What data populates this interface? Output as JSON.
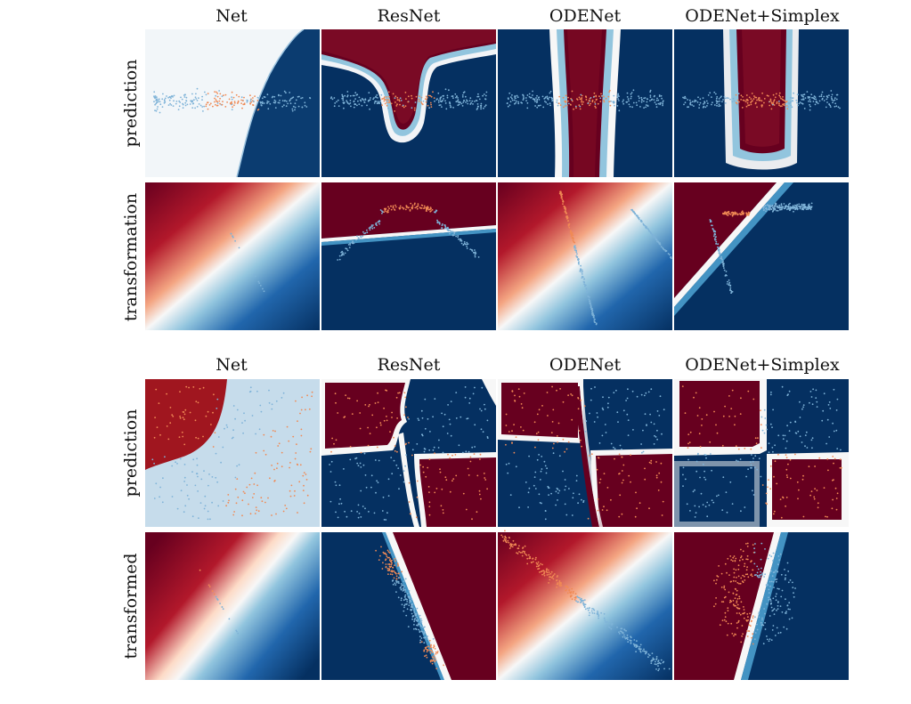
{
  "figure": {
    "blocks": [
      {
        "column_titles": [
          "Net",
          "ResNet",
          "ODENet",
          "ODENet+Simplex"
        ],
        "row_labels": [
          "prediction",
          "transformation"
        ]
      },
      {
        "column_titles": [
          "Net",
          "ResNet",
          "ODENet",
          "ODENet+Simplex"
        ],
        "row_labels": [
          "prediction",
          "transformed"
        ]
      }
    ],
    "colors": {
      "deep_red": "#67001f",
      "red": "#b2182b",
      "light_red": "#f4a582",
      "white": "#f7f7f7",
      "light_blue": "#92c5de",
      "blue": "#2166ac",
      "deep_blue": "#053061",
      "point_orange": "#f08a55",
      "point_blue": "#7fb3d8"
    }
  }
}
